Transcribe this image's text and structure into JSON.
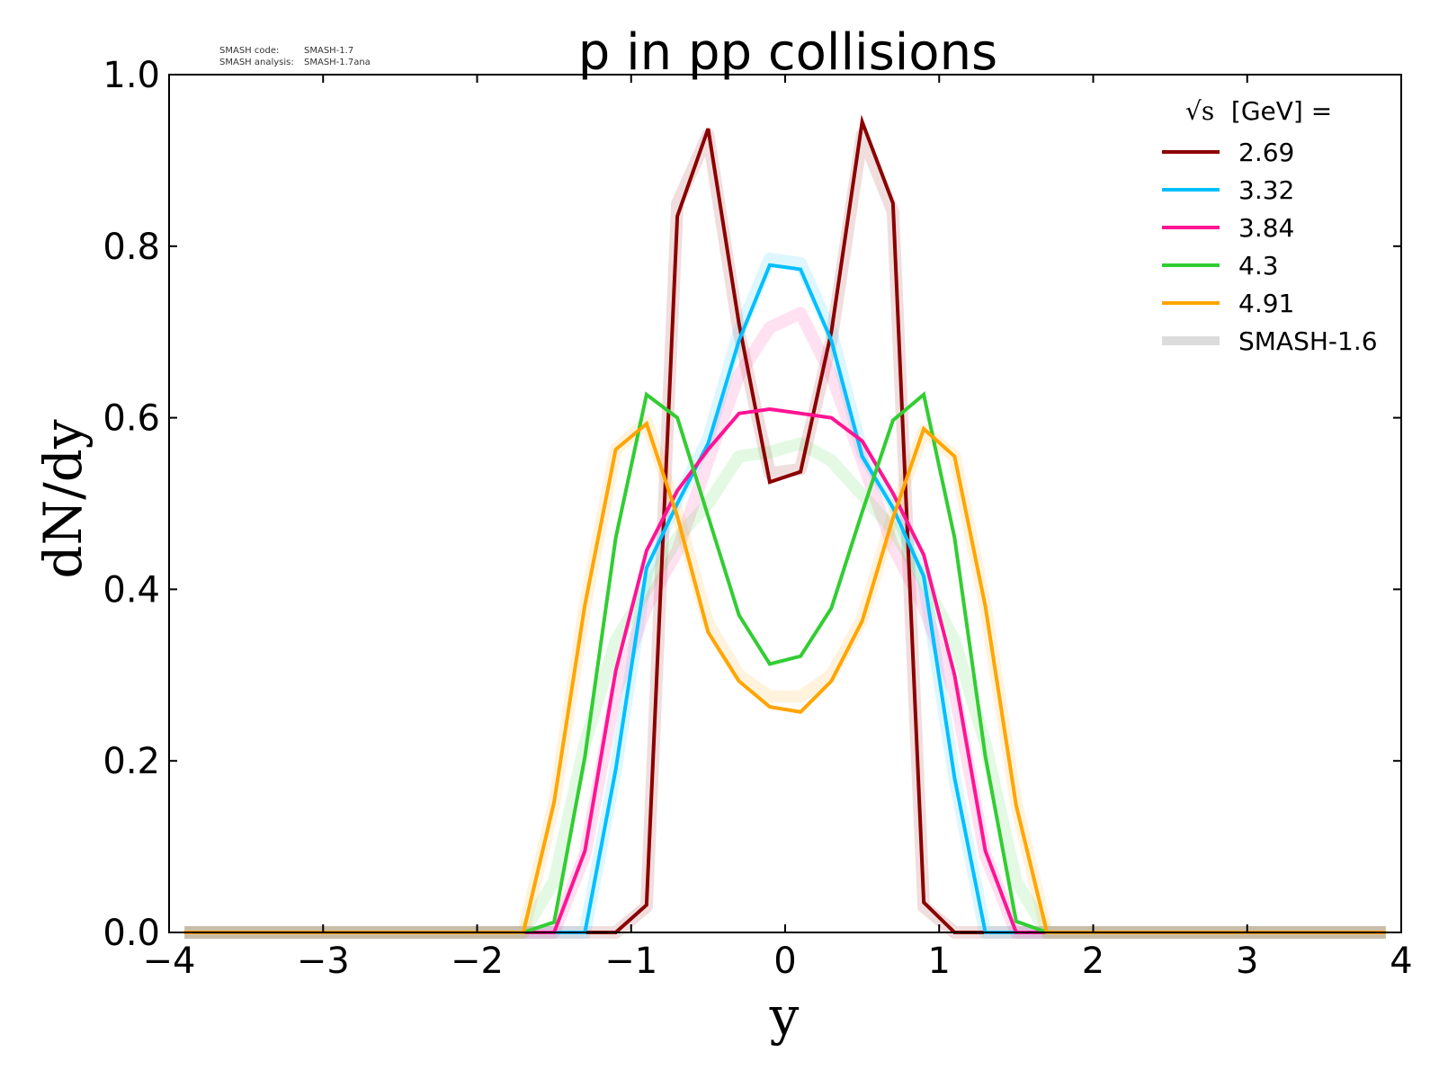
{
  "meta": {
    "code_label": "SMASH code:",
    "code_value": "SMASH-1.7",
    "analysis_label": "SMASH analysis:",
    "analysis_value": "SMASH-1.7ana"
  },
  "chart_data": {
    "type": "line",
    "title": "p in pp collisions",
    "xlabel": "y",
    "ylabel": "dN/dy",
    "xlim": [
      -4,
      4
    ],
    "ylim": [
      0,
      1.0
    ],
    "xticks": [
      -4,
      -3,
      -2,
      -1,
      0,
      1,
      2,
      3,
      4
    ],
    "xtick_labels": [
      "−4",
      "−3",
      "−2",
      "−1",
      "0",
      "1",
      "2",
      "3",
      "4"
    ],
    "yticks": [
      0,
      0.2,
      0.4,
      0.6,
      0.8,
      1.0
    ],
    "ytick_labels": [
      "0.0",
      "0.2",
      "0.4",
      "0.6",
      "0.8",
      "1.0"
    ],
    "legend": {
      "title_sqrt": "√s",
      "title_rest": " [GeV] =",
      "placement": "top-right"
    },
    "x": [
      -3.9,
      -3.7,
      -3.5,
      -3.3,
      -3.1,
      -2.9,
      -2.7,
      -2.5,
      -2.3,
      -2.1,
      -1.9,
      -1.7,
      -1.5,
      -1.3,
      -1.1,
      -0.9,
      -0.7,
      -0.5,
      -0.3,
      -0.1,
      0.1,
      0.3,
      0.5,
      0.7,
      0.9,
      1.1,
      1.3,
      1.5,
      1.7,
      1.9,
      2.1,
      2.3,
      2.5,
      2.7,
      2.9,
      3.1,
      3.3,
      3.5,
      3.7,
      3.9
    ],
    "series": [
      {
        "name": "2.69",
        "color": "#8b0000",
        "values": [
          0,
          0,
          0,
          0,
          0,
          0,
          0,
          0,
          0,
          0,
          0,
          0,
          0,
          0,
          0.0,
          0.032,
          0.835,
          0.937,
          0.71,
          0.525,
          0.537,
          0.7,
          0.945,
          0.85,
          0.035,
          0.0,
          0,
          0,
          0,
          0,
          0,
          0,
          0,
          0,
          0,
          0,
          0,
          0,
          0,
          0
        ]
      },
      {
        "name": "3.32",
        "color": "#00bfff",
        "values": [
          0,
          0,
          0,
          0,
          0,
          0,
          0,
          0,
          0,
          0,
          0,
          0,
          0,
          0.0,
          0.19,
          0.425,
          0.5,
          0.57,
          0.69,
          0.778,
          0.773,
          0.69,
          0.555,
          0.495,
          0.415,
          0.18,
          0.0,
          0,
          0,
          0,
          0,
          0,
          0,
          0,
          0,
          0,
          0,
          0,
          0,
          0
        ]
      },
      {
        "name": "3.84",
        "color": "#ff1493",
        "values": [
          0,
          0,
          0,
          0,
          0,
          0,
          0,
          0,
          0,
          0,
          0,
          0,
          0.0,
          0.095,
          0.305,
          0.445,
          0.515,
          0.563,
          0.605,
          0.61,
          0.605,
          0.6,
          0.573,
          0.512,
          0.44,
          0.3,
          0.095,
          0.0,
          0,
          0,
          0,
          0,
          0,
          0,
          0,
          0,
          0,
          0,
          0,
          0
        ]
      },
      {
        "name": "4.3",
        "color": "#32cd32",
        "values": [
          0,
          0,
          0,
          0,
          0,
          0,
          0,
          0,
          0,
          0,
          0,
          0.0,
          0.012,
          0.205,
          0.46,
          0.627,
          0.6,
          0.485,
          0.37,
          0.313,
          0.322,
          0.378,
          0.49,
          0.597,
          0.627,
          0.46,
          0.205,
          0.013,
          0.0,
          0,
          0,
          0,
          0,
          0,
          0,
          0,
          0,
          0,
          0,
          0
        ]
      },
      {
        "name": "4.91",
        "color": "#ffa500",
        "values": [
          0,
          0,
          0,
          0,
          0,
          0,
          0,
          0,
          0,
          0,
          0,
          0.0,
          0.152,
          0.382,
          0.563,
          0.593,
          0.485,
          0.35,
          0.293,
          0.263,
          0.257,
          0.293,
          0.363,
          0.483,
          0.587,
          0.555,
          0.38,
          0.148,
          0.0,
          0,
          0,
          0,
          0,
          0,
          0,
          0,
          0,
          0,
          0,
          0
        ]
      }
    ],
    "reference": {
      "name": "SMASH-1.6",
      "color": "#dcdcdc",
      "series": [
        {
          "color": "#8b0000",
          "values": [
            0,
            0,
            0,
            0,
            0,
            0,
            0,
            0,
            0,
            0,
            0,
            0,
            0,
            0,
            0.0,
            0.03,
            0.85,
            0.93,
            0.7,
            0.535,
            0.54,
            0.69,
            0.93,
            0.84,
            0.03,
            0.0,
            0,
            0,
            0,
            0,
            0,
            0,
            0,
            0,
            0,
            0,
            0,
            0,
            0,
            0
          ]
        },
        {
          "color": "#00bfff",
          "values": [
            0,
            0,
            0,
            0,
            0,
            0,
            0,
            0,
            0,
            0,
            0,
            0,
            0,
            0.0,
            0.19,
            0.42,
            0.505,
            0.575,
            0.7,
            0.785,
            0.78,
            0.7,
            0.56,
            0.5,
            0.41,
            0.18,
            0.0,
            0,
            0,
            0,
            0,
            0,
            0,
            0,
            0,
            0,
            0,
            0,
            0,
            0
          ]
        },
        {
          "color": "#ff1493",
          "values": [
            0,
            0,
            0,
            0,
            0,
            0,
            0,
            0,
            0,
            0,
            0,
            0,
            0.0,
            0.09,
            0.28,
            0.38,
            0.445,
            0.55,
            0.65,
            0.705,
            0.722,
            0.65,
            0.55,
            0.45,
            0.38,
            0.28,
            0.09,
            0.0,
            0,
            0,
            0,
            0,
            0,
            0,
            0,
            0,
            0,
            0,
            0,
            0
          ]
        },
        {
          "color": "#32cd32",
          "values": [
            0,
            0,
            0,
            0,
            0,
            0,
            0,
            0,
            0,
            0,
            0,
            0.0,
            0.06,
            0.22,
            0.34,
            0.4,
            0.46,
            0.5,
            0.555,
            0.56,
            0.57,
            0.55,
            0.51,
            0.47,
            0.41,
            0.34,
            0.22,
            0.06,
            0.0,
            0,
            0,
            0,
            0,
            0,
            0,
            0,
            0,
            0,
            0,
            0
          ]
        },
        {
          "color": "#ffa500",
          "values": [
            0,
            0,
            0,
            0,
            0,
            0,
            0,
            0,
            0,
            0,
            0,
            0.0,
            0.15,
            0.38,
            0.563,
            0.595,
            0.49,
            0.36,
            0.3,
            0.275,
            0.275,
            0.3,
            0.365,
            0.485,
            0.585,
            0.555,
            0.38,
            0.15,
            0.0,
            0,
            0,
            0,
            0,
            0,
            0,
            0,
            0,
            0,
            0,
            0
          ]
        }
      ]
    }
  }
}
